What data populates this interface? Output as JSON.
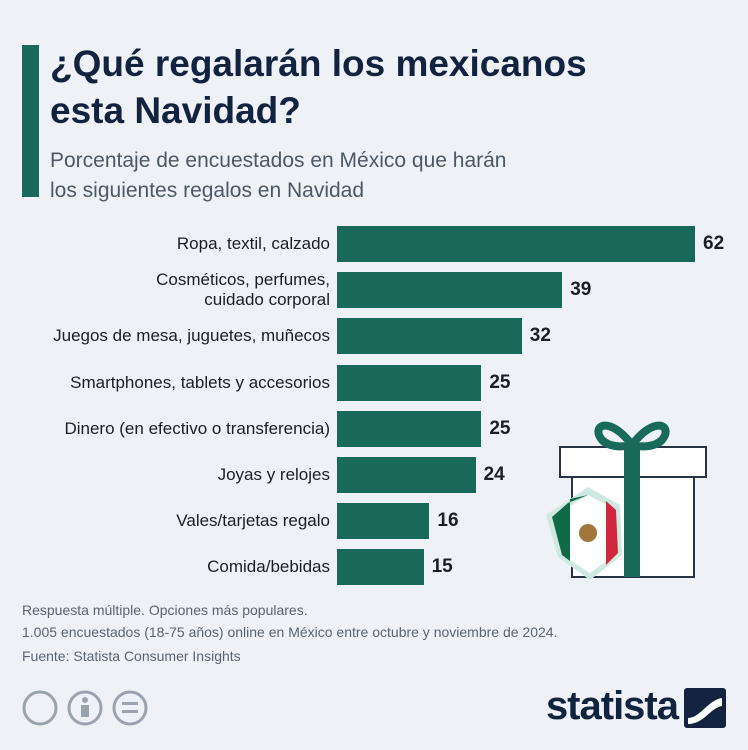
{
  "chart_data": {
    "type": "bar",
    "title": "¿Qué regalarán los mexicanos\nesta Navidad?",
    "subtitle": "Porcentaje de encuestados en México que harán\nlos siguientes regalos en Navidad",
    "categories": [
      "Ropa, textil, calzado",
      "Cosméticos, perfumes,\ncuidado corporal",
      "Juegos de mesa, juguetes, muñecos",
      "Smartphones, tablets y accesorios",
      "Dinero (en efectivo o transferencia)",
      "Joyas y relojes",
      "Vales/tarjetas regalo",
      "Comida/bebidas"
    ],
    "values": [
      62,
      39,
      32,
      25,
      25,
      24,
      16,
      15
    ],
    "color": "#1a6a5c",
    "notes": [
      "Respuesta múltiple. Opciones más populares.",
      "1.005 encuestados (18-75 años) online en México entre octubre y noviembre de 2024.",
      "Fuente: Statista Consumer Insights"
    ],
    "brand": "statista"
  }
}
